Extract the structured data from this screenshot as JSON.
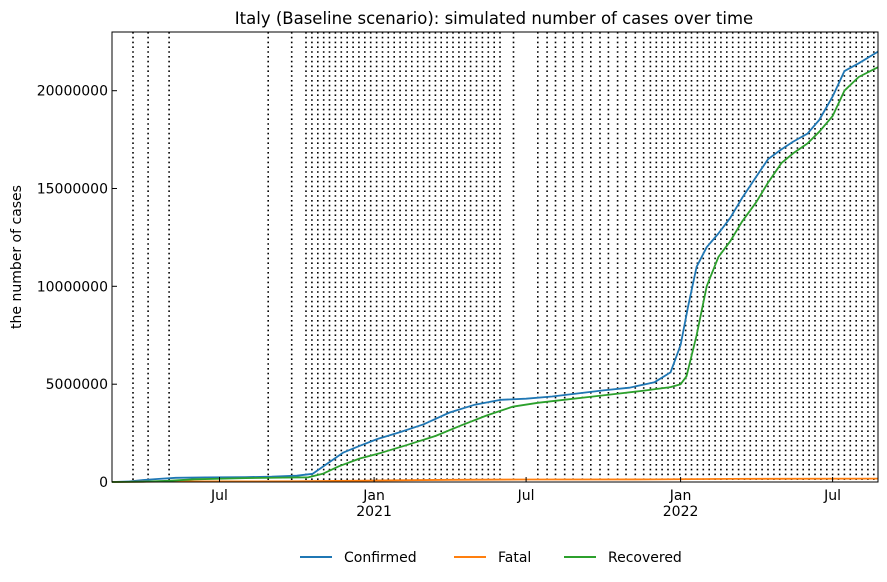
{
  "chart_data": {
    "type": "line",
    "title": "Italy (Baseline scenario): simulated number of cases over time",
    "xlabel": "",
    "ylabel": "the number of cases",
    "xlim": [
      "2020-02-24",
      "2022-08-24"
    ],
    "ylim": [
      0,
      23000000
    ],
    "yticks": [
      0,
      5000000,
      10000000,
      15000000,
      20000000
    ],
    "ytick_labels": [
      "0",
      "5000000",
      "10000000",
      "15000000",
      "20000000"
    ],
    "xticks": [
      {
        "date": "2020-07-01",
        "label": "Jul",
        "sub": ""
      },
      {
        "date": "2021-01-01",
        "label": "Jan",
        "sub": "2021"
      },
      {
        "date": "2021-07-01",
        "label": "Jul",
        "sub": ""
      },
      {
        "date": "2022-01-01",
        "label": "Jan",
        "sub": "2022"
      },
      {
        "date": "2022-07-01",
        "label": "Jul",
        "sub": ""
      }
    ],
    "legend_position": "bottom-center",
    "vlines": [
      "2020-03-20",
      "2020-04-07",
      "2020-05-02",
      "2020-08-28",
      "2020-09-25",
      "2020-10-12",
      "2020-10-19",
      "2020-10-26",
      "2020-11-02",
      "2020-11-09",
      "2020-11-16",
      "2020-11-23",
      "2020-11-30",
      "2020-12-07",
      "2020-12-14",
      "2020-12-21",
      "2020-12-28",
      "2021-01-04",
      "2021-01-11",
      "2021-01-18",
      "2021-01-25",
      "2021-02-01",
      "2021-02-08",
      "2021-02-15",
      "2021-02-22",
      "2021-03-01",
      "2021-03-08",
      "2021-03-15",
      "2021-03-22",
      "2021-03-29",
      "2021-04-05",
      "2021-04-12",
      "2021-04-19",
      "2021-04-26",
      "2021-05-03",
      "2021-05-10",
      "2021-05-17",
      "2021-05-24",
      "2021-05-31",
      "2021-06-16",
      "2021-07-15",
      "2021-07-26",
      "2021-08-05",
      "2021-08-16",
      "2021-08-26",
      "2021-09-06",
      "2021-09-16",
      "2021-09-27",
      "2021-10-07",
      "2021-10-18",
      "2021-10-28",
      "2021-11-08",
      "2021-11-18",
      "2021-11-26",
      "2021-12-03",
      "2021-12-10",
      "2021-12-17",
      "2021-12-24",
      "2021-12-31",
      "2022-01-07",
      "2022-01-14",
      "2022-01-21",
      "2022-01-28",
      "2022-02-04",
      "2022-02-11",
      "2022-02-18",
      "2022-02-25",
      "2022-03-04",
      "2022-03-11",
      "2022-03-18",
      "2022-03-25",
      "2022-04-01",
      "2022-04-08",
      "2022-04-15",
      "2022-04-22",
      "2022-04-29",
      "2022-05-06",
      "2022-05-13",
      "2022-05-20",
      "2022-05-27",
      "2022-06-03",
      "2022-06-10",
      "2022-06-17",
      "2022-06-24",
      "2022-07-01",
      "2022-07-08",
      "2022-07-15",
      "2022-07-22",
      "2022-07-29",
      "2022-08-05",
      "2022-08-12",
      "2022-08-19"
    ],
    "series": [
      {
        "name": "Confirmed",
        "color": "#1f77b4",
        "points": [
          [
            "2020-02-24",
            0
          ],
          [
            "2020-03-15",
            25000
          ],
          [
            "2020-04-01",
            100000
          ],
          [
            "2020-04-20",
            160000
          ],
          [
            "2020-05-10",
            215000
          ],
          [
            "2020-06-15",
            237000
          ],
          [
            "2020-08-01",
            248000
          ],
          [
            "2020-09-01",
            270000
          ],
          [
            "2020-10-01",
            320000
          ],
          [
            "2020-10-20",
            420000
          ],
          [
            "2020-11-05",
            900000
          ],
          [
            "2020-11-25",
            1500000
          ],
          [
            "2020-12-15",
            1850000
          ],
          [
            "2021-01-05",
            2200000
          ],
          [
            "2021-02-01",
            2550000
          ],
          [
            "2021-03-01",
            2950000
          ],
          [
            "2021-04-01",
            3550000
          ],
          [
            "2021-05-01",
            3950000
          ],
          [
            "2021-06-01",
            4200000
          ],
          [
            "2021-07-01",
            4260000
          ],
          [
            "2021-08-01",
            4370000
          ],
          [
            "2021-09-01",
            4530000
          ],
          [
            "2021-10-01",
            4680000
          ],
          [
            "2021-11-01",
            4820000
          ],
          [
            "2021-12-01",
            5100000
          ],
          [
            "2021-12-20",
            5600000
          ],
          [
            "2022-01-01",
            7000000
          ],
          [
            "2022-01-10",
            9000000
          ],
          [
            "2022-01-20",
            11000000
          ],
          [
            "2022-02-01",
            12000000
          ],
          [
            "2022-02-15",
            12700000
          ],
          [
            "2022-03-01",
            13500000
          ],
          [
            "2022-03-15",
            14500000
          ],
          [
            "2022-04-01",
            15600000
          ],
          [
            "2022-04-15",
            16500000
          ],
          [
            "2022-05-01",
            17000000
          ],
          [
            "2022-05-15",
            17400000
          ],
          [
            "2022-06-01",
            17800000
          ],
          [
            "2022-06-15",
            18500000
          ],
          [
            "2022-07-01",
            19700000
          ],
          [
            "2022-07-15",
            21000000
          ],
          [
            "2022-08-01",
            21400000
          ],
          [
            "2022-08-24",
            22000000
          ]
        ]
      },
      {
        "name": "Fatal",
        "color": "#ff7f0e",
        "points": [
          [
            "2020-02-24",
            0
          ],
          [
            "2020-04-01",
            13000
          ],
          [
            "2020-06-01",
            33000
          ],
          [
            "2020-10-01",
            36000
          ],
          [
            "2021-01-01",
            75000
          ],
          [
            "2021-04-01",
            110000
          ],
          [
            "2021-07-01",
            127000
          ],
          [
            "2021-12-01",
            134000
          ],
          [
            "2022-03-01",
            156000
          ],
          [
            "2022-08-24",
            175000
          ]
        ]
      },
      {
        "name": "Recovered",
        "color": "#2ca02c",
        "points": [
          [
            "2020-02-24",
            0
          ],
          [
            "2020-04-01",
            15000
          ],
          [
            "2020-05-01",
            60000
          ],
          [
            "2020-06-01",
            140000
          ],
          [
            "2020-08-01",
            200000
          ],
          [
            "2020-09-15",
            225000
          ],
          [
            "2020-10-15",
            240000
          ],
          [
            "2020-11-01",
            420000
          ],
          [
            "2020-11-20",
            800000
          ],
          [
            "2020-12-15",
            1200000
          ],
          [
            "2021-01-10",
            1500000
          ],
          [
            "2021-02-10",
            1900000
          ],
          [
            "2021-03-15",
            2350000
          ],
          [
            "2021-04-15",
            2900000
          ],
          [
            "2021-05-15",
            3400000
          ],
          [
            "2021-06-15",
            3850000
          ],
          [
            "2021-07-15",
            4050000
          ],
          [
            "2021-08-15",
            4200000
          ],
          [
            "2021-09-15",
            4350000
          ],
          [
            "2021-10-15",
            4500000
          ],
          [
            "2021-11-15",
            4650000
          ],
          [
            "2021-12-20",
            4850000
          ],
          [
            "2022-01-01",
            5000000
          ],
          [
            "2022-01-08",
            5400000
          ],
          [
            "2022-01-20",
            7500000
          ],
          [
            "2022-02-01",
            10000000
          ],
          [
            "2022-02-15",
            11500000
          ],
          [
            "2022-03-01",
            12300000
          ],
          [
            "2022-03-15",
            13300000
          ],
          [
            "2022-04-01",
            14300000
          ],
          [
            "2022-04-15",
            15300000
          ],
          [
            "2022-05-01",
            16300000
          ],
          [
            "2022-05-15",
            16800000
          ],
          [
            "2022-06-01",
            17300000
          ],
          [
            "2022-06-15",
            17900000
          ],
          [
            "2022-07-01",
            18700000
          ],
          [
            "2022-07-15",
            20000000
          ],
          [
            "2022-08-01",
            20700000
          ],
          [
            "2022-08-24",
            21200000
          ]
        ]
      }
    ]
  }
}
